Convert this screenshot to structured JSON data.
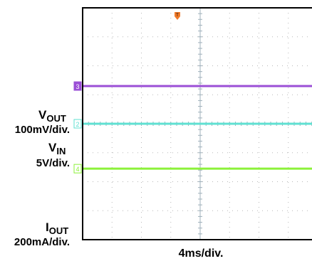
{
  "chart_data": {
    "type": "line",
    "title": "",
    "xlabel": "4ms/div.",
    "ylabel": "",
    "grid": true,
    "x_divisions": 8,
    "y_divisions": 8,
    "trigger_marker": "T",
    "channels": [
      {
        "id": "2",
        "label_main": "V",
        "label_sub": "OUT",
        "scale": "100mV/div.",
        "color": "#5fe0d2",
        "level_div": 4.0
      },
      {
        "id": "3",
        "label_main": "V",
        "label_sub": "IN",
        "scale": "5V/div.",
        "color": "#9b4fd6",
        "level_div": 5.3
      },
      {
        "id": "4",
        "label_main": "I",
        "label_sub": "OUT",
        "scale": "200mA/div.",
        "color": "#8cf23a",
        "level_div": 2.45
      }
    ]
  }
}
